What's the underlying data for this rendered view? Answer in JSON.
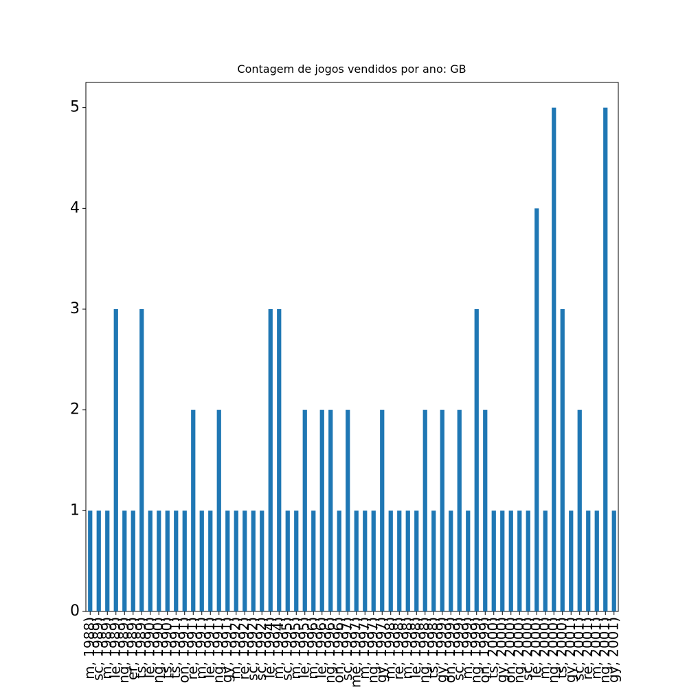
{
  "chart_data": {
    "type": "bar",
    "title": "Contagem de jogos vendidos por ano: GB",
    "categories": [
      "m, 1988)",
      "sc, 1989)",
      "m, 1989)",
      "le, 1989)",
      "ng, 1989)",
      "er, 1989)",
      "ts, 1989)",
      "le, 1990)",
      "ng, 1990)",
      "ts, 1990)",
      "ts, 1991)",
      "on, 1991)",
      "re, 1991)",
      "m, 1991)",
      "le, 1991)",
      "ng, 1991)",
      "gy, 1991)",
      "m, 1992)",
      "re, 1992)",
      "sc, 1992)",
      "sc, 1992)",
      "le, 1994)",
      "m, 1994)",
      "sc, 1995)",
      "m, 1995)",
      "le, 1995)",
      "m, 1996)",
      "le, 1996)",
      "ng, 1996)",
      "on, 1996)",
      "sc, 1997)",
      "me, 1997)",
      "m, 1997)",
      "ng, 1997)",
      "gy, 1997)",
      "m, 1998)",
      "re, 1998)",
      "m, 1998)",
      "le, 1998)",
      "ng, 1998)",
      "ts, 1998)",
      "gy, 1999)",
      "on, 1999)",
      "sc, 1999)",
      "m, 1999)",
      "ng, 1999)",
      "on, 1999)",
      "ts, 2000)",
      "gy, 2000)",
      "on, 2000)",
      "ng, 2000)",
      "sc, 2000)",
      "le, 2000)",
      "m, 2000)",
      "ng, 2000)",
      "ts, 2000)",
      "gy, 2001)",
      "sc, 2001)",
      "re, 2001)",
      "m, 2001)",
      "ng, 2001)",
      "gy, 2001)"
    ],
    "values": [
      1,
      1,
      1,
      3,
      1,
      1,
      3,
      1,
      1,
      1,
      1,
      1,
      2,
      1,
      1,
      2,
      1,
      1,
      1,
      1,
      1,
      3,
      3,
      1,
      1,
      2,
      1,
      2,
      2,
      1,
      2,
      1,
      1,
      1,
      2,
      1,
      1,
      1,
      1,
      2,
      1,
      2,
      1,
      2,
      1,
      3,
      2,
      1,
      1,
      1,
      1,
      1,
      4,
      1,
      5,
      3,
      1,
      2,
      1,
      1,
      5,
      1
    ],
    "color": "#1f77b4",
    "ylim": [
      0,
      5.25
    ],
    "yticks": [
      0,
      1,
      2,
      3,
      4,
      5
    ]
  }
}
